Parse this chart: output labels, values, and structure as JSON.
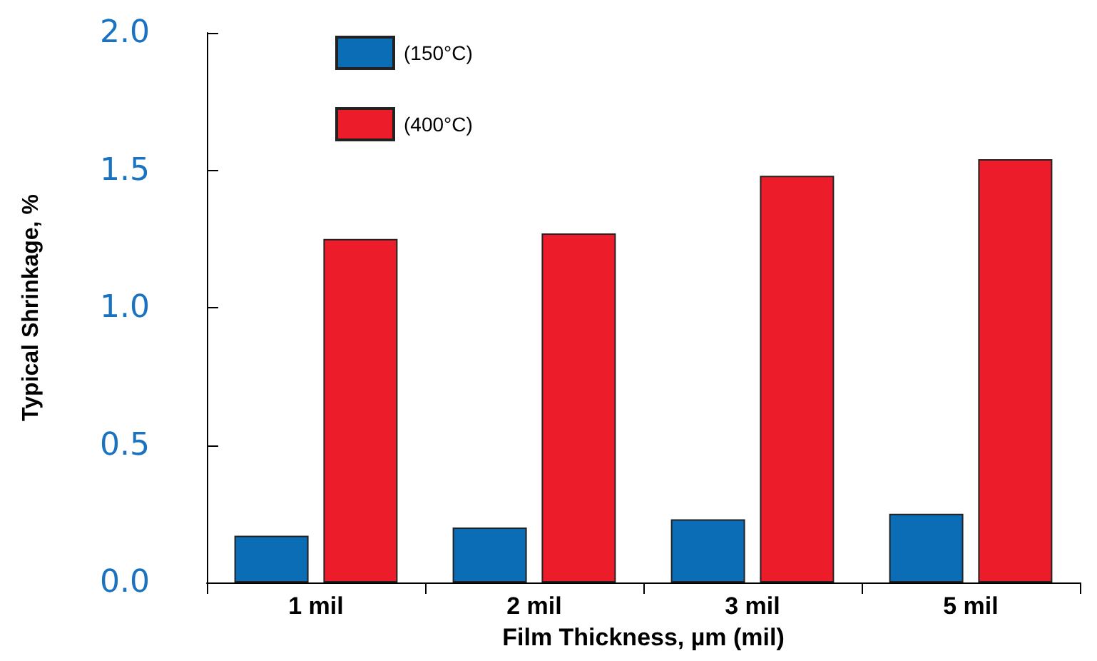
{
  "chart_data": {
    "type": "bar",
    "xlabel": "Film Thickness, µm (mil)",
    "ylabel": "Typical Shrinkage, %",
    "categories": [
      "1 mil",
      "2 mil",
      "3 mil",
      "5 mil"
    ],
    "series": [
      {
        "name": "(150°C)",
        "color": "#0a6db5",
        "values": [
          0.17,
          0.2,
          0.23,
          0.25
        ]
      },
      {
        "name": "(400°C)",
        "color": "#ed1c2b",
        "values": [
          1.25,
          1.27,
          1.48,
          1.54
        ]
      }
    ],
    "ylim": [
      0,
      2
    ],
    "yticks": [
      {
        "value": 0,
        "label": "0.0"
      },
      0.5,
      {
        "value": 1,
        "label": "1.0"
      },
      1.5,
      {
        "value": 2,
        "label": "2.0"
      }
    ],
    "grid": false,
    "legend": "top left"
  }
}
